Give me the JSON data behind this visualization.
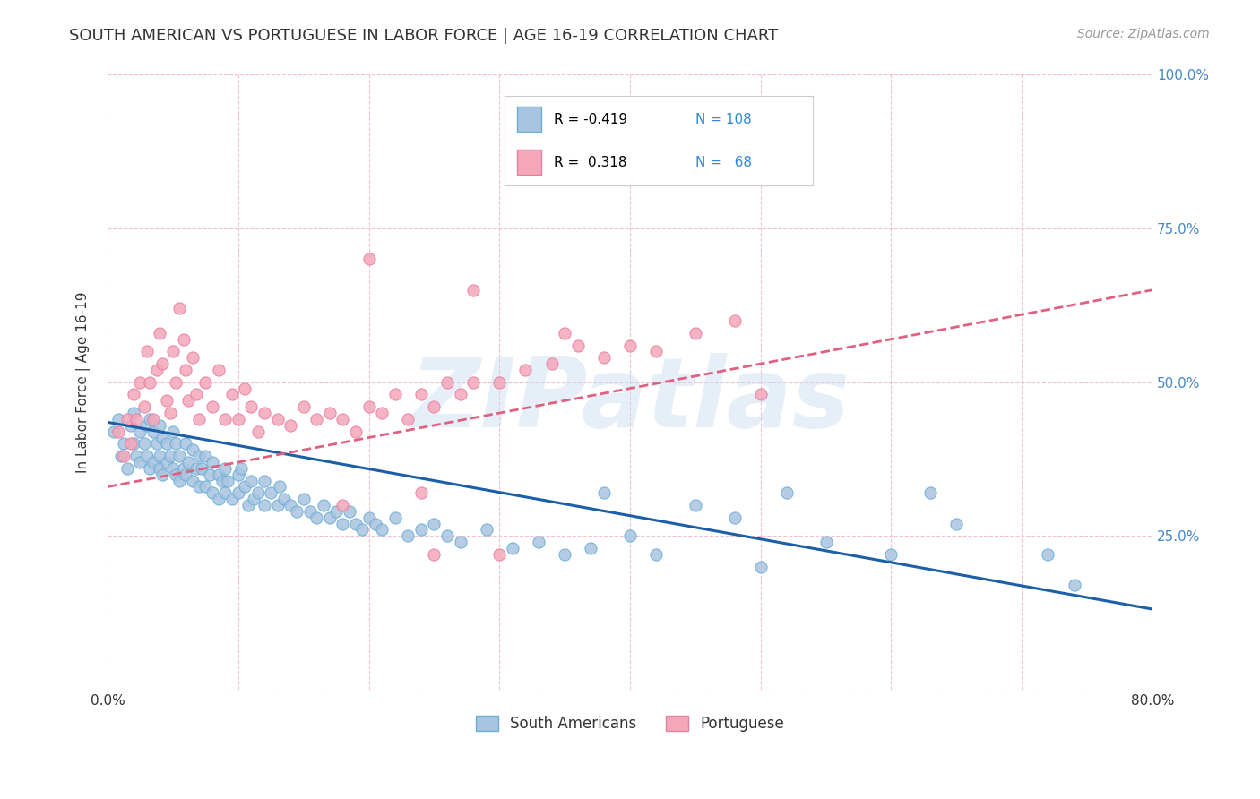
{
  "title": "SOUTH AMERICAN VS PORTUGUESE IN LABOR FORCE | AGE 16-19 CORRELATION CHART",
  "source": "Source: ZipAtlas.com",
  "ylabel": "In Labor Force | Age 16-19",
  "xlim": [
    0.0,
    0.8
  ],
  "ylim": [
    0.0,
    1.0
  ],
  "xticks": [
    0.0,
    0.1,
    0.2,
    0.3,
    0.4,
    0.5,
    0.6,
    0.7,
    0.8
  ],
  "yticks": [
    0.0,
    0.25,
    0.5,
    0.75,
    1.0
  ],
  "sa_color": "#a8c4e0",
  "sa_edge": "#6aaed6",
  "pt_color": "#f4a7b9",
  "pt_edge": "#e87fa0",
  "sa_line_color": "#1a5fa8",
  "pt_line_color": "#e06080",
  "watermark": "ZIPatlas",
  "background_color": "#ffffff",
  "R_sa": -0.419,
  "N_sa": 108,
  "R_pt": 0.318,
  "N_pt": 68,
  "sa_intercept": 0.435,
  "sa_slope": -0.38,
  "pt_intercept": 0.33,
  "pt_slope": 0.4,
  "sa_x": [
    0.005,
    0.008,
    0.01,
    0.012,
    0.015,
    0.018,
    0.02,
    0.02,
    0.022,
    0.025,
    0.025,
    0.028,
    0.03,
    0.03,
    0.032,
    0.032,
    0.035,
    0.035,
    0.038,
    0.04,
    0.04,
    0.04,
    0.042,
    0.042,
    0.045,
    0.045,
    0.048,
    0.05,
    0.05,
    0.052,
    0.052,
    0.055,
    0.055,
    0.058,
    0.06,
    0.06,
    0.062,
    0.065,
    0.065,
    0.068,
    0.07,
    0.07,
    0.072,
    0.075,
    0.075,
    0.078,
    0.08,
    0.08,
    0.085,
    0.085,
    0.088,
    0.09,
    0.09,
    0.092,
    0.095,
    0.1,
    0.1,
    0.102,
    0.105,
    0.108,
    0.11,
    0.112,
    0.115,
    0.12,
    0.12,
    0.125,
    0.13,
    0.132,
    0.135,
    0.14,
    0.145,
    0.15,
    0.155,
    0.16,
    0.165,
    0.17,
    0.175,
    0.18,
    0.185,
    0.19,
    0.195,
    0.2,
    0.205,
    0.21,
    0.22,
    0.23,
    0.24,
    0.25,
    0.26,
    0.27,
    0.29,
    0.31,
    0.33,
    0.35,
    0.37,
    0.38,
    0.4,
    0.42,
    0.45,
    0.48,
    0.5,
    0.52,
    0.55,
    0.6,
    0.63,
    0.65,
    0.72,
    0.74
  ],
  "sa_y": [
    0.42,
    0.44,
    0.38,
    0.4,
    0.36,
    0.43,
    0.45,
    0.4,
    0.38,
    0.42,
    0.37,
    0.4,
    0.43,
    0.38,
    0.44,
    0.36,
    0.42,
    0.37,
    0.4,
    0.43,
    0.38,
    0.36,
    0.41,
    0.35,
    0.4,
    0.37,
    0.38,
    0.42,
    0.36,
    0.4,
    0.35,
    0.38,
    0.34,
    0.36,
    0.4,
    0.35,
    0.37,
    0.39,
    0.34,
    0.36,
    0.38,
    0.33,
    0.36,
    0.38,
    0.33,
    0.35,
    0.37,
    0.32,
    0.35,
    0.31,
    0.34,
    0.36,
    0.32,
    0.34,
    0.31,
    0.35,
    0.32,
    0.36,
    0.33,
    0.3,
    0.34,
    0.31,
    0.32,
    0.34,
    0.3,
    0.32,
    0.3,
    0.33,
    0.31,
    0.3,
    0.29,
    0.31,
    0.29,
    0.28,
    0.3,
    0.28,
    0.29,
    0.27,
    0.29,
    0.27,
    0.26,
    0.28,
    0.27,
    0.26,
    0.28,
    0.25,
    0.26,
    0.27,
    0.25,
    0.24,
    0.26,
    0.23,
    0.24,
    0.22,
    0.23,
    0.32,
    0.25,
    0.22,
    0.3,
    0.28,
    0.2,
    0.32,
    0.24,
    0.22,
    0.32,
    0.27,
    0.22,
    0.17
  ],
  "pt_x": [
    0.008,
    0.012,
    0.015,
    0.018,
    0.02,
    0.022,
    0.025,
    0.028,
    0.03,
    0.032,
    0.035,
    0.038,
    0.04,
    0.042,
    0.045,
    0.048,
    0.05,
    0.052,
    0.055,
    0.058,
    0.06,
    0.062,
    0.065,
    0.068,
    0.07,
    0.075,
    0.08,
    0.085,
    0.09,
    0.095,
    0.1,
    0.105,
    0.11,
    0.115,
    0.12,
    0.13,
    0.14,
    0.15,
    0.16,
    0.17,
    0.18,
    0.19,
    0.2,
    0.21,
    0.22,
    0.23,
    0.24,
    0.25,
    0.26,
    0.27,
    0.28,
    0.3,
    0.32,
    0.34,
    0.36,
    0.38,
    0.4,
    0.42,
    0.45,
    0.48,
    0.28,
    0.35,
    0.2,
    0.5,
    0.24,
    0.18,
    0.25,
    0.3
  ],
  "pt_y": [
    0.42,
    0.38,
    0.44,
    0.4,
    0.48,
    0.44,
    0.5,
    0.46,
    0.55,
    0.5,
    0.44,
    0.52,
    0.58,
    0.53,
    0.47,
    0.45,
    0.55,
    0.5,
    0.62,
    0.57,
    0.52,
    0.47,
    0.54,
    0.48,
    0.44,
    0.5,
    0.46,
    0.52,
    0.44,
    0.48,
    0.44,
    0.49,
    0.46,
    0.42,
    0.45,
    0.44,
    0.43,
    0.46,
    0.44,
    0.45,
    0.44,
    0.42,
    0.46,
    0.45,
    0.48,
    0.44,
    0.48,
    0.46,
    0.5,
    0.48,
    0.5,
    0.5,
    0.52,
    0.53,
    0.56,
    0.54,
    0.56,
    0.55,
    0.58,
    0.6,
    0.65,
    0.58,
    0.7,
    0.48,
    0.32,
    0.3,
    0.22,
    0.22
  ]
}
